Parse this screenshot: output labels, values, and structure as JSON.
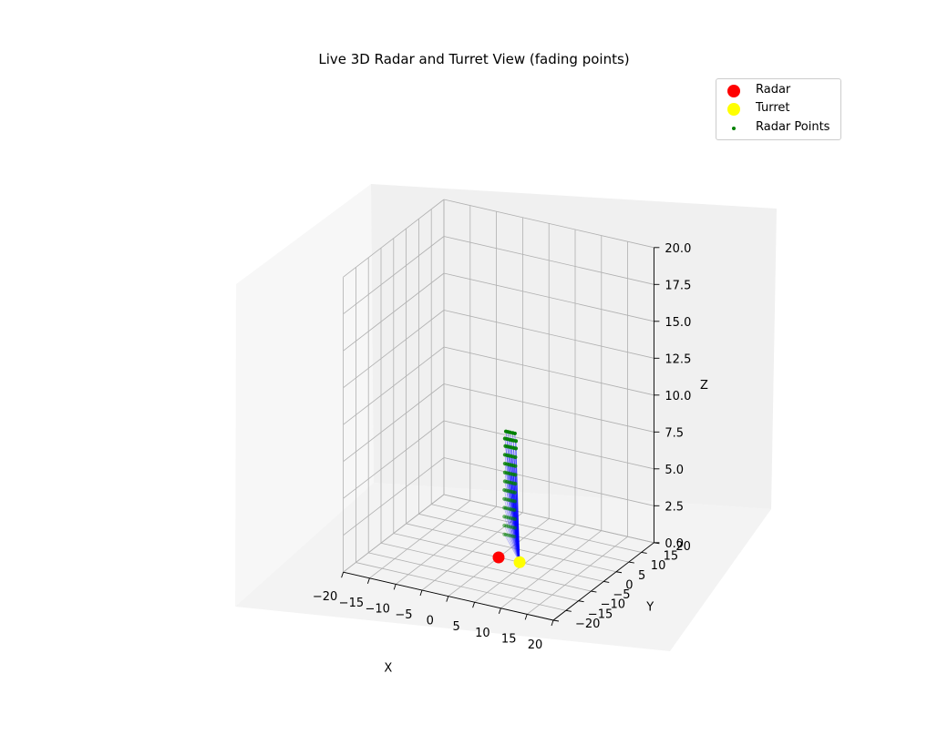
{
  "chart_data": {
    "type": "scatter3d",
    "title": "Live 3D Radar and Turret View (fading points)",
    "xlabel": "X",
    "ylabel": "Y",
    "zlabel": "Z",
    "xlim": [
      -20,
      20
    ],
    "ylim": [
      -20,
      20
    ],
    "zlim": [
      0,
      20
    ],
    "x_ticks": [
      "−20",
      "−15",
      "−10",
      "−5",
      "0",
      "5",
      "10",
      "15",
      "20"
    ],
    "y_ticks": [
      "−20",
      "−15",
      "−10",
      "−5",
      "0",
      "5",
      "10",
      "15",
      "20"
    ],
    "z_ticks": [
      "0.0",
      "2.5",
      "5.0",
      "7.5",
      "10.0",
      "12.5",
      "15.0",
      "17.5",
      "20.0"
    ],
    "grid": true,
    "legend_position": "top-right",
    "radar": {
      "name": "Radar",
      "color": "#ff0000",
      "point": [
        0,
        0,
        0
      ]
    },
    "turret": {
      "name": "Turret",
      "color": "#ffff00",
      "point": [
        4,
        0,
        0
      ]
    },
    "radar_points": {
      "name": "Radar Points",
      "color": "#008000",
      "line_color": "#0000ff",
      "points": [
        [
          -1.3,
          5,
          0.8
        ],
        [
          -1.0,
          5,
          0.8
        ],
        [
          -0.6,
          5,
          0.8
        ],
        [
          -0.2,
          5,
          0.8
        ],
        [
          0.2,
          5,
          0.8
        ],
        [
          0.6,
          5,
          0.8
        ],
        [
          -1.3,
          5,
          1.4
        ],
        [
          -0.9,
          5,
          1.4
        ],
        [
          -0.5,
          5,
          1.4
        ],
        [
          -0.1,
          5,
          1.4
        ],
        [
          0.3,
          5,
          1.4
        ],
        [
          0.7,
          5,
          1.4
        ],
        [
          -1.3,
          5,
          2.0
        ],
        [
          -0.9,
          5,
          2.0
        ],
        [
          -0.5,
          5,
          2.0
        ],
        [
          -0.1,
          5,
          2.0
        ],
        [
          0.3,
          5,
          2.0
        ],
        [
          0.7,
          5,
          2.0
        ],
        [
          -1.3,
          5,
          2.6
        ],
        [
          -1.0,
          5,
          2.6
        ],
        [
          -0.6,
          5,
          2.6
        ],
        [
          -0.2,
          5,
          2.6
        ],
        [
          0.2,
          5,
          2.6
        ],
        [
          0.6,
          5,
          2.6
        ],
        [
          -1.3,
          5,
          3.2
        ],
        [
          -0.9,
          5,
          3.2
        ],
        [
          -0.5,
          5,
          3.2
        ],
        [
          -0.1,
          5,
          3.2
        ],
        [
          0.3,
          5,
          3.2
        ],
        [
          0.7,
          5,
          3.2
        ],
        [
          -1.3,
          5,
          3.8
        ],
        [
          -0.9,
          5,
          3.8
        ],
        [
          -0.5,
          5,
          3.8
        ],
        [
          -0.1,
          5,
          3.8
        ],
        [
          0.3,
          5,
          3.8
        ],
        [
          0.7,
          5,
          3.8
        ],
        [
          -1.2,
          5,
          4.4
        ],
        [
          -0.8,
          5,
          4.4
        ],
        [
          -0.4,
          5,
          4.4
        ],
        [
          0.0,
          5,
          4.4
        ],
        [
          0.4,
          5,
          4.4
        ],
        [
          0.8,
          5,
          4.4
        ],
        [
          -1.2,
          5,
          5.0
        ],
        [
          -0.8,
          5,
          5.0
        ],
        [
          -0.4,
          5,
          5.0
        ],
        [
          0.0,
          5,
          5.0
        ],
        [
          0.4,
          5,
          5.0
        ],
        [
          0.8,
          5,
          5.0
        ],
        [
          -1.2,
          5,
          5.6
        ],
        [
          -0.8,
          5,
          5.6
        ],
        [
          -0.4,
          5,
          5.6
        ],
        [
          0.0,
          5,
          5.6
        ],
        [
          0.4,
          5,
          5.6
        ],
        [
          0.8,
          5,
          5.6
        ],
        [
          -1.2,
          5,
          6.2
        ],
        [
          -0.8,
          5,
          6.2
        ],
        [
          -0.4,
          5,
          6.2
        ],
        [
          0.0,
          5,
          6.2
        ],
        [
          0.4,
          5,
          6.2
        ],
        [
          0.8,
          5,
          6.2
        ],
        [
          -1.1,
          5,
          6.8
        ],
        [
          -0.7,
          5,
          6.8
        ],
        [
          -0.3,
          5,
          6.8
        ],
        [
          0.1,
          5,
          6.8
        ],
        [
          0.5,
          5,
          6.8
        ],
        [
          0.9,
          5,
          6.8
        ],
        [
          -1.2,
          5,
          7.3
        ],
        [
          -0.8,
          5,
          7.3
        ],
        [
          -0.4,
          5,
          7.3
        ],
        [
          0.0,
          5,
          7.3
        ],
        [
          0.4,
          5,
          7.3
        ],
        [
          0.9,
          5,
          7.3
        ],
        [
          -1.0,
          5,
          7.8
        ],
        [
          -0.6,
          5,
          7.8
        ],
        [
          -0.2,
          5,
          7.8
        ],
        [
          0.3,
          5,
          7.8
        ],
        [
          0.7,
          5,
          7.8
        ]
      ]
    }
  }
}
